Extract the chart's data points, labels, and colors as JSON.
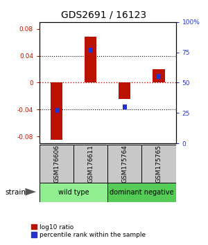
{
  "title": "GDS2691 / 16123",
  "samples": [
    "GSM176606",
    "GSM176611",
    "GSM175764",
    "GSM175765"
  ],
  "log10_ratio": [
    -0.085,
    0.068,
    -0.024,
    0.02
  ],
  "percentile_rank": [
    0.27,
    0.77,
    0.3,
    0.55
  ],
  "ylim_left": [
    -0.09,
    0.09
  ],
  "yticks_left": [
    -0.08,
    -0.04,
    0.0,
    0.04,
    0.08
  ],
  "ytick_labels_left": [
    "-0.08",
    "-0.04",
    "0",
    "0.04",
    "0.08"
  ],
  "yticks_right": [
    0.0,
    0.25,
    0.5,
    0.75,
    1.0
  ],
  "ytick_labels_right": [
    "0",
    "25",
    "50",
    "75",
    "100%"
  ],
  "groups": [
    {
      "label": "wild type",
      "samples": [
        0,
        1
      ],
      "color": "#90EE90"
    },
    {
      "label": "dominant negative",
      "samples": [
        2,
        3
      ],
      "color": "#55CC55"
    }
  ],
  "strain_label": "strain",
  "red_bar_color": "#BB1100",
  "blue_bar_color": "#2233CC",
  "zero_line_color": "#CC0000",
  "sample_box_color": "#C8C8C8",
  "legend_red_label": "log10 ratio",
  "legend_blue_label": "percentile rank within the sample"
}
